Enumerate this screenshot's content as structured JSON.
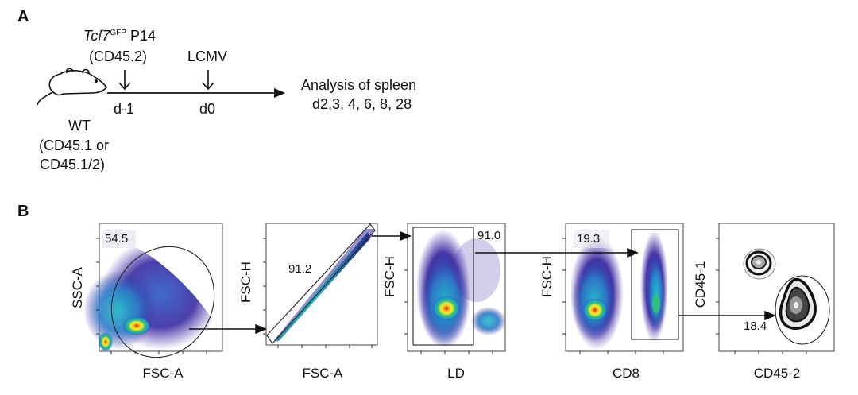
{
  "panel_a": {
    "letter": "A",
    "donor": {
      "gene": "Tcf7",
      "superscript": "GFP",
      "suffix": "P14",
      "marker": "(CD45.2)"
    },
    "infection": "LCMV",
    "day_minus1": "d-1",
    "day0": "d0",
    "analysis_line1": "Analysis of spleen",
    "analysis_line2": "d2,3, 4, 6, 8, 28",
    "host_line1": "WT",
    "host_line2": "(CD45.1 or",
    "host_line3": "CD45.1/2)"
  },
  "panel_b": {
    "letter": "B",
    "plots": [
      {
        "xlabel": "FSC-A",
        "ylabel": "SSC-A",
        "gate_value": "54.5"
      },
      {
        "xlabel": "FSC-A",
        "ylabel": "FSC-H",
        "gate_value": "91.2"
      },
      {
        "xlabel": "LD",
        "ylabel": "FSC-H",
        "gate_value": "91.0"
      },
      {
        "xlabel": "CD8",
        "ylabel": "FSC-H",
        "gate_value": "19.3"
      },
      {
        "xlabel": "CD45-2",
        "ylabel": "CD45-1",
        "gate_value": "18.4"
      }
    ]
  },
  "colors": {
    "density_low": "#3a2a9a",
    "density_mid": "#1fb0c8",
    "density_high": "#f8e030",
    "density_peak": "#e02020"
  }
}
